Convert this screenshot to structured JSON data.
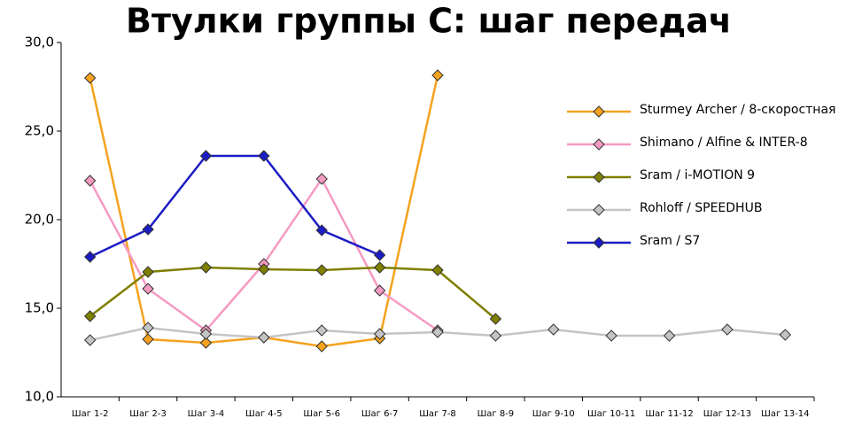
{
  "chart_data": {
    "type": "line",
    "title": "Втулки группы C: шаг передач",
    "categories": [
      "Шаг 1-2",
      "Шаг 2-3",
      "Шаг 3-4",
      "Шаг 4-5",
      "Шаг 5-6",
      "Шаг 6-7",
      "Шаг 7-8",
      "Шаг 8-9",
      "Шаг 9-10",
      "Шаг 10-11",
      "Шаг 11-12",
      "Шаг 12-13",
      "Шаг 13-14"
    ],
    "series": [
      {
        "name": "Sturmey Archer / 8-скоростная",
        "color": "#f5a21e",
        "values": [
          28.0,
          13.25,
          13.05,
          13.35,
          12.85,
          13.3,
          28.15,
          null,
          null,
          null,
          null,
          null,
          null
        ]
      },
      {
        "name": "Shimano / Alfine & INTER-8",
        "color": "#f59ac3",
        "values": [
          22.2,
          16.1,
          13.75,
          17.5,
          22.3,
          16.0,
          13.75,
          null,
          null,
          null,
          null,
          null,
          null
        ]
      },
      {
        "name": "Sram / i-MOTION 9",
        "color": "#7f7f00",
        "values": [
          14.55,
          17.05,
          17.3,
          17.2,
          17.15,
          17.3,
          17.15,
          14.4,
          null,
          null,
          null,
          null,
          null
        ]
      },
      {
        "name": "Rohloff / SPEEDHUB",
        "color": "#c4c4c4",
        "values": [
          13.2,
          13.9,
          13.55,
          13.35,
          13.75,
          13.55,
          13.65,
          13.45,
          13.8,
          13.45,
          13.45,
          13.8,
          13.5
        ]
      },
      {
        "name": "Sram / S7",
        "color": "#1c1cc4",
        "values": [
          17.9,
          19.45,
          23.6,
          23.6,
          19.4,
          18.0,
          null,
          null,
          null,
          null,
          null,
          null,
          null
        ]
      }
    ],
    "ylim": [
      10,
      30
    ],
    "yticks": [
      {
        "value": 10,
        "label": "10,0"
      },
      {
        "value": 15,
        "label": "15,0"
      },
      {
        "value": 20,
        "label": "20,0"
      },
      {
        "value": 25,
        "label": "25,0"
      },
      {
        "value": 30,
        "label": "30,0"
      }
    ]
  }
}
